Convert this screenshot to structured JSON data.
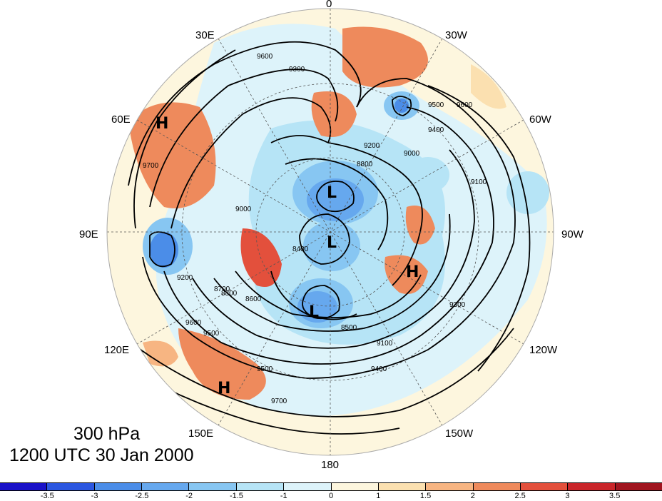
{
  "title": {
    "level": "300 hPa",
    "time": "1200 UTC 30 Jan 2000"
  },
  "longitude_labels": [
    "0",
    "30W",
    "60W",
    "90W",
    "120W",
    "150W",
    "180",
    "150E",
    "120E",
    "90E",
    "60E",
    "30E"
  ],
  "pressure_centers": [
    "H",
    "H",
    "H",
    "L",
    "L",
    "L"
  ],
  "contour_labels": [
    "9600",
    "9300",
    "9500",
    "9600",
    "9400",
    "9200",
    "9000",
    "8800",
    "9100",
    "8400",
    "8500",
    "8600",
    "9300",
    "9700",
    "9200",
    "9500",
    "9400",
    "9100",
    "8800",
    "8700",
    "9600",
    "9500",
    "9700",
    "9000"
  ],
  "colorbar": {
    "ticks": [
      "-3.5",
      "-3",
      "-2.5",
      "-2",
      "-1.5",
      "-1",
      "0",
      "1",
      "1.5",
      "2",
      "2.5",
      "3",
      "3.5"
    ],
    "colors": [
      "#1a12c8",
      "#2b56e0",
      "#4b8de8",
      "#66a8ee",
      "#87c6f2",
      "#b6e4f6",
      "#ddf3fa",
      "#fdf6de",
      "#fbe0b0",
      "#f7b582",
      "#ee8a5c",
      "#e3503c",
      "#c9252a",
      "#a0151f"
    ]
  }
}
